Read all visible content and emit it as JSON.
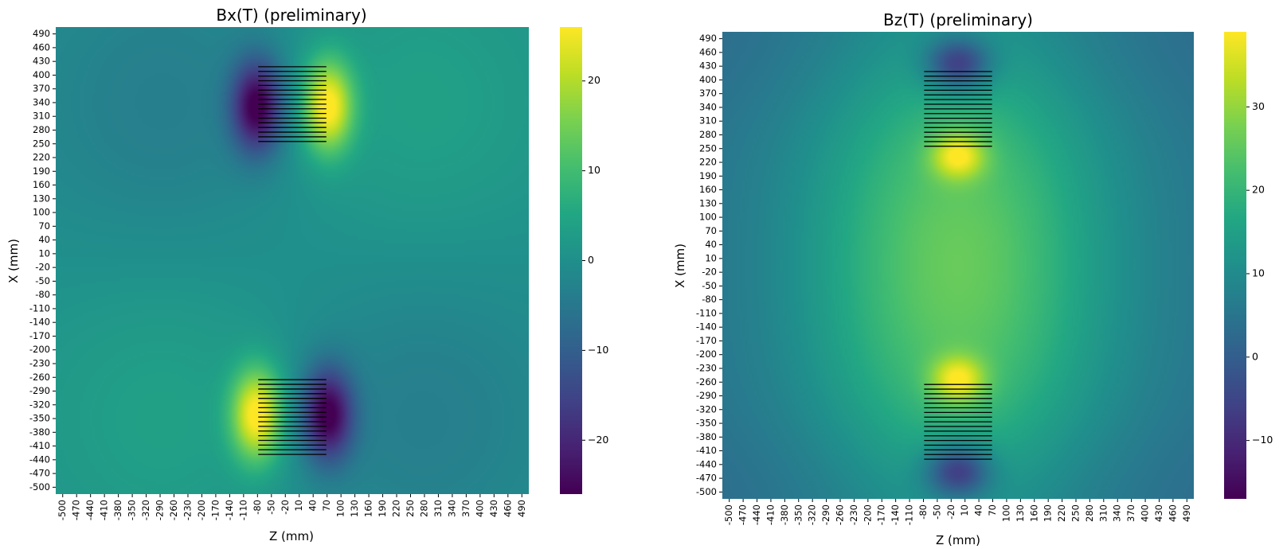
{
  "chart_data": [
    {
      "type": "heatmap",
      "title": "Bx(T) (preliminary)",
      "xlabel": "Z (mm)",
      "ylabel": "X (mm)",
      "x_range": [
        -500,
        500
      ],
      "y_range": [
        -500,
        500
      ],
      "x_ticks": [
        "-500",
        "-470",
        "-440",
        "-410",
        "-380",
        "-350",
        "-320",
        "-290",
        "-260",
        "-230",
        "-200",
        "-170",
        "-140",
        "-110",
        "-80",
        "-50",
        "-20",
        "10",
        "40",
        "70",
        "100",
        "130",
        "160",
        "190",
        "220",
        "250",
        "280",
        "310",
        "340",
        "370",
        "400",
        "430",
        "460",
        "490"
      ],
      "y_ticks": [
        "490",
        "460",
        "430",
        "400",
        "370",
        "340",
        "310",
        "280",
        "250",
        "220",
        "190",
        "160",
        "130",
        "100",
        "70",
        "40",
        "10",
        "-20",
        "-50",
        "-80",
        "-110",
        "-140",
        "-170",
        "-200",
        "-230",
        "-260",
        "-290",
        "-320",
        "-350",
        "-380",
        "-410",
        "-440",
        "-470",
        "-500"
      ],
      "colormap": "viridis",
      "colorbar": {
        "min": -26,
        "max": 26,
        "ticks": [
          20,
          10,
          0,
          -10,
          -20
        ],
        "tick_labels": [
          "20",
          "10",
          "0",
          "−10",
          "−20"
        ]
      },
      "field": "Bx",
      "coils": [
        {
          "z_range": [
            -72,
            72
          ],
          "x_range": [
            255,
            415
          ],
          "winding_lines": 17
        },
        {
          "z_range": [
            -72,
            72
          ],
          "x_range": [
            -415,
            -255
          ],
          "winding_lines": 17
        }
      ]
    },
    {
      "type": "heatmap",
      "title": "Bz(T) (preliminary)",
      "xlabel": "Z (mm)",
      "ylabel": "X (mm)",
      "x_range": [
        -500,
        500
      ],
      "y_range": [
        -500,
        500
      ],
      "x_ticks": [
        "-500",
        "-470",
        "-440",
        "-410",
        "-380",
        "-350",
        "-320",
        "-290",
        "-260",
        "-230",
        "-200",
        "-170",
        "-140",
        "-110",
        "-80",
        "-50",
        "-20",
        "10",
        "40",
        "70",
        "100",
        "130",
        "160",
        "190",
        "220",
        "250",
        "280",
        "310",
        "340",
        "370",
        "400",
        "430",
        "460",
        "490"
      ],
      "y_ticks": [
        "490",
        "460",
        "430",
        "400",
        "370",
        "340",
        "310",
        "280",
        "250",
        "220",
        "190",
        "160",
        "130",
        "100",
        "70",
        "40",
        "10",
        "-20",
        "-50",
        "-80",
        "-110",
        "-140",
        "-170",
        "-200",
        "-230",
        "-260",
        "-290",
        "-320",
        "-350",
        "-380",
        "-410",
        "-440",
        "-470",
        "-500"
      ],
      "colormap": "viridis",
      "colorbar": {
        "min": -17,
        "max": 39,
        "ticks": [
          30,
          20,
          10,
          0,
          -10
        ],
        "tick_labels": [
          "30",
          "20",
          "10",
          "0",
          "−10"
        ]
      },
      "field": "Bz",
      "coils": [
        {
          "z_range": [
            -72,
            72
          ],
          "x_range": [
            255,
            415
          ],
          "winding_lines": 17
        },
        {
          "z_range": [
            -72,
            72
          ],
          "x_range": [
            -415,
            -255
          ],
          "winding_lines": 17
        }
      ]
    }
  ]
}
